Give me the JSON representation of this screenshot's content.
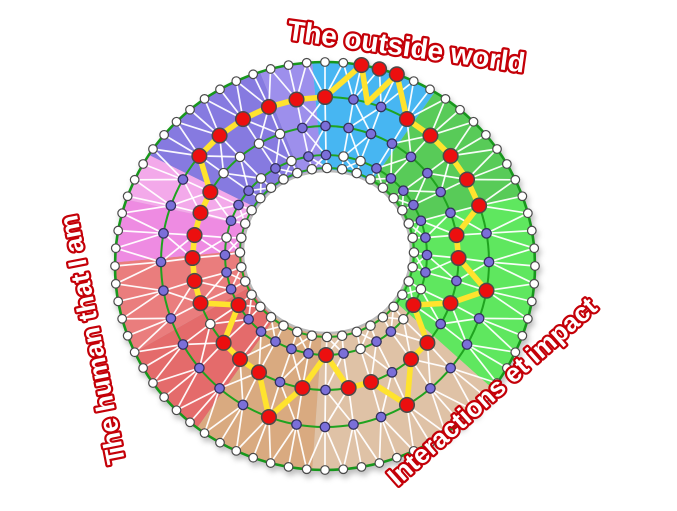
{
  "labels": {
    "top": {
      "text": "The outside world"
    },
    "left": {
      "text": "The human that I am"
    },
    "right": {
      "text": "Interactions et impact"
    },
    "outline_color": "#C40008",
    "fill_color": "#FFFFFF"
  },
  "wheel": {
    "spokes": 36,
    "rings": 5,
    "sectors": [
      {
        "id": "sector-blue",
        "color": "#47B6F2",
        "from": -3.5,
        "to": 31.5
      },
      {
        "id": "sector-green-dark",
        "color": "#58CB58",
        "from": 31.5,
        "to": 70
      },
      {
        "id": "sector-green-bright",
        "color": "#5FE75F",
        "from": 70,
        "to": 127
      },
      {
        "id": "sector-tan-light",
        "color": "#DFC2A6",
        "from": 127,
        "to": 183.5
      },
      {
        "id": "sector-tan-dark",
        "color": "#D9AA80",
        "from": 183.5,
        "to": 217.5
      },
      {
        "id": "sector-red-dark",
        "color": "#E46B6B",
        "from": 217.5,
        "to": 245
      },
      {
        "id": "sector-red-light",
        "color": "#EA7D7D",
        "from": 245,
        "to": 271
      },
      {
        "id": "sector-pink-bright",
        "color": "#EE8BE2",
        "from": 271,
        "to": 289
      },
      {
        "id": "sector-pink-light",
        "color": "#F3A9EA",
        "from": 289,
        "to": 303
      },
      {
        "id": "sector-purple-dark",
        "color": "#867AE0",
        "from": 303,
        "to": 342
      },
      {
        "id": "sector-purple-light",
        "color": "#9D8FEC",
        "from": 342,
        "to": 356.5
      }
    ],
    "red_profile": [
      1,
      0,
      0,
      1,
      1,
      1,
      1,
      1,
      2,
      2,
      1,
      2,
      3,
      2,
      2,
      1,
      2,
      2,
      3,
      2,
      1,
      2,
      2,
      2,
      3,
      2,
      2,
      2,
      2,
      2,
      2,
      1,
      1,
      1,
      1,
      1
    ],
    "purple_outer": [
      2,
      1,
      1,
      2,
      2,
      2,
      2,
      2,
      1,
      1,
      2,
      1,
      1,
      1,
      1,
      2,
      1,
      1,
      1,
      1,
      2,
      1,
      1,
      1,
      1,
      1,
      1,
      1,
      1,
      1,
      1,
      -1,
      -1,
      -1,
      -1,
      2
    ],
    "purple_inner": [
      3,
      2,
      2,
      3,
      3,
      3,
      3,
      3,
      3,
      3,
      3,
      2,
      2,
      2,
      3,
      3,
      2,
      3,
      2,
      3,
      3,
      3,
      3,
      3,
      -1,
      3,
      3,
      3,
      -1,
      3,
      3,
      3,
      -1,
      3,
      -1,
      3
    ],
    "palette": {
      "node_white": "#FFFFFF",
      "node_purple": "#7B6FD9",
      "node_red": "#EC0F0F",
      "node_edge": "#4A4A4A",
      "ring_line": "#1FA31F",
      "outer_line": "#17971C",
      "mesh_line": "#FFFFFF",
      "path_yellow": "#FFE32E",
      "hole_edge": "#BBBBBB"
    }
  }
}
